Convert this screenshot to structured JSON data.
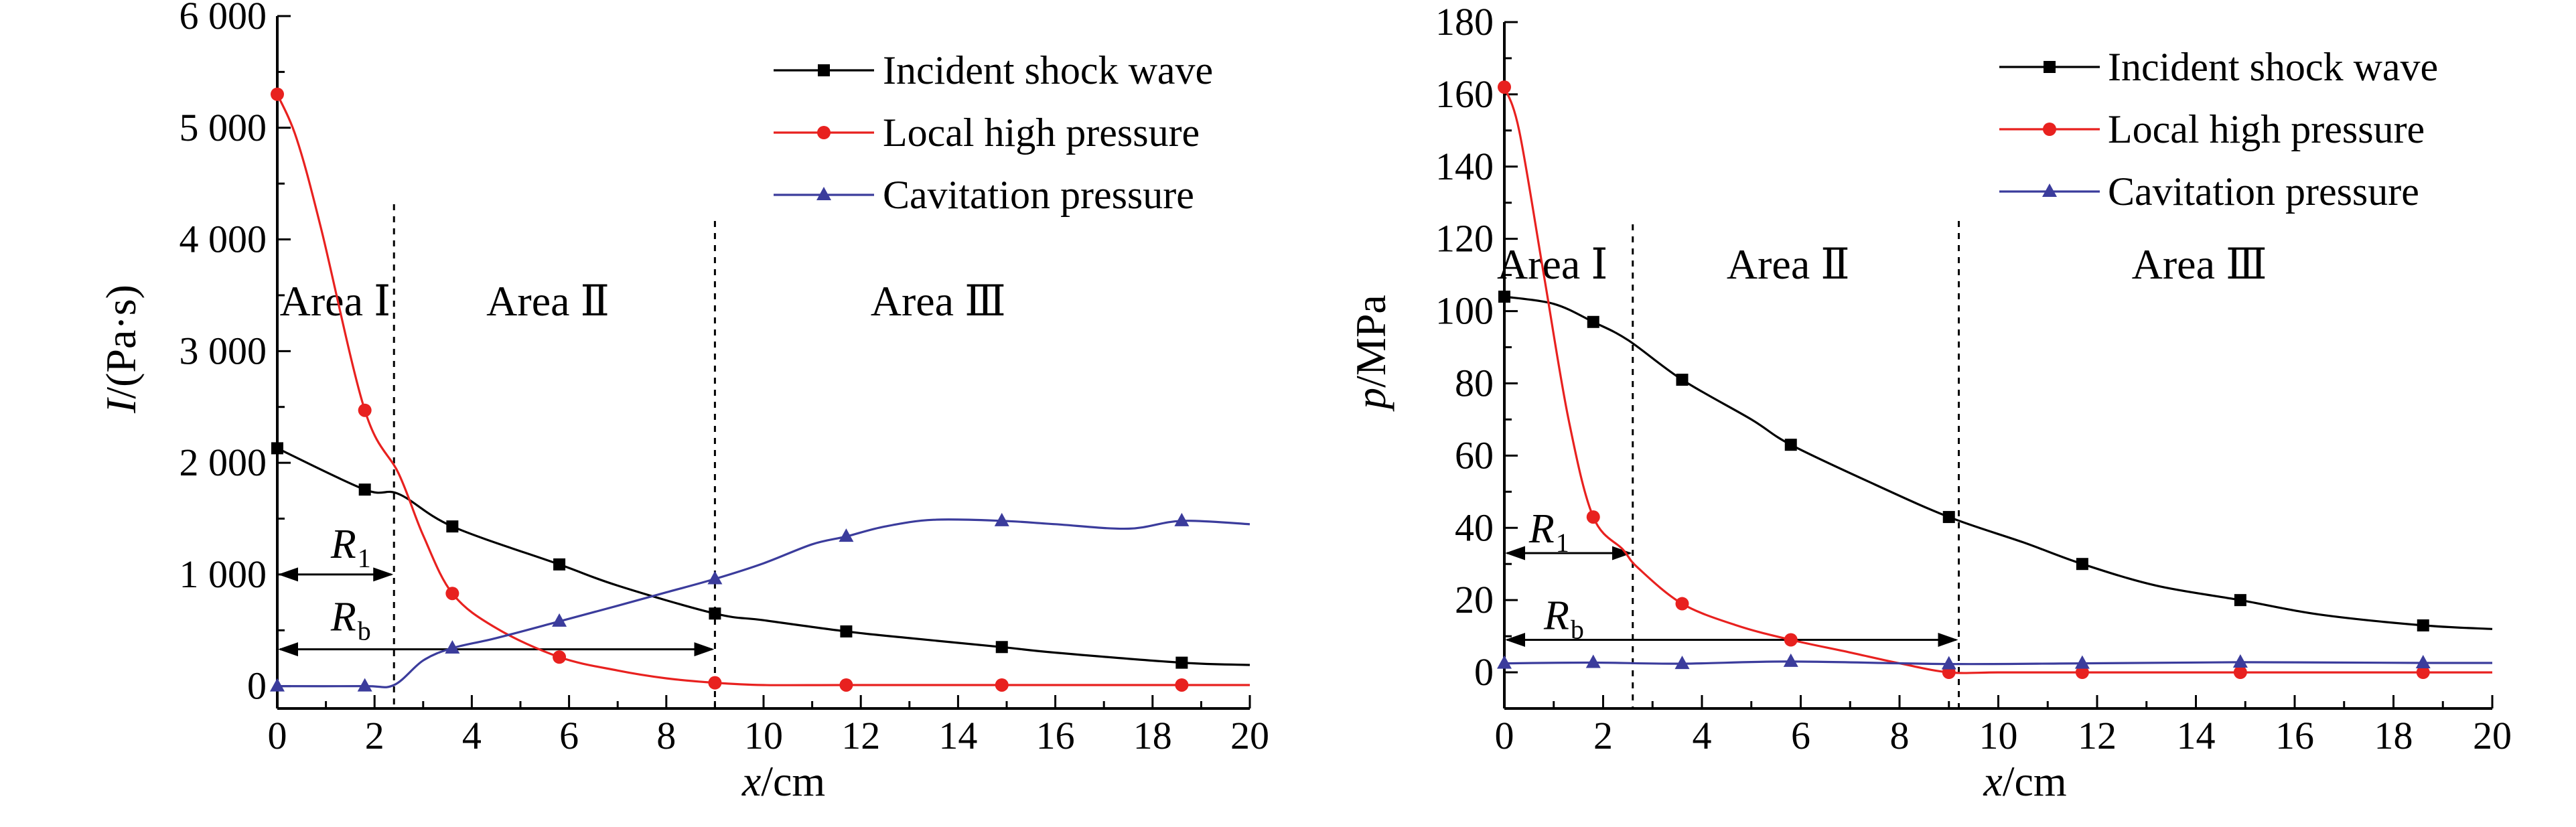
{
  "chart_data": [
    {
      "type": "line",
      "ylabel_var": "I",
      "ylabel_unit": "/(Pa·s)",
      "xlabel_var": "x",
      "xlabel_unit": "/cm",
      "xlim": [
        0,
        20
      ],
      "ylim": [
        -200,
        6000
      ],
      "xticks": [
        0,
        2,
        4,
        6,
        8,
        10,
        12,
        14,
        16,
        18,
        20
      ],
      "xtick_labels": [
        "0",
        "2",
        "4",
        "6",
        "8",
        "10",
        "12",
        "14",
        "16",
        "18",
        "20"
      ],
      "yticks": [
        0,
        1000,
        2000,
        3000,
        4000,
        5000,
        6000
      ],
      "ytick_labels": [
        "0",
        "1 000",
        "2 000",
        "3 000",
        "4 000",
        "5 000",
        "6 000"
      ],
      "series": [
        {
          "name": "Incident shock wave",
          "color": "#000000",
          "marker": "square",
          "curve": [
            [
              0,
              2130
            ],
            [
              1.8,
              1760
            ],
            [
              2.5,
              1720
            ],
            [
              3.6,
              1430
            ],
            [
              5.8,
              1090
            ],
            [
              7,
              900
            ],
            [
              9,
              650
            ],
            [
              10,
              590
            ],
            [
              11.7,
              490
            ],
            [
              13,
              430
            ],
            [
              14.9,
              350
            ],
            [
              16,
              300
            ],
            [
              18.6,
              210
            ],
            [
              20,
              190
            ]
          ],
          "markers": [
            [
              0,
              2130
            ],
            [
              1.8,
              1760
            ],
            [
              3.6,
              1430
            ],
            [
              5.8,
              1090
            ],
            [
              9,
              650
            ],
            [
              11.7,
              490
            ],
            [
              14.9,
              350
            ],
            [
              18.6,
              210
            ]
          ]
        },
        {
          "name": "Local high pressure",
          "color": "#e8211f",
          "marker": "circle",
          "curve": [
            [
              0,
              5300
            ],
            [
              0.4,
              4900
            ],
            [
              0.9,
              4100
            ],
            [
              1.8,
              2470
            ],
            [
              2.5,
              1900
            ],
            [
              3,
              1350
            ],
            [
              3.6,
              830
            ],
            [
              4.5,
              520
            ],
            [
              5.8,
              260
            ],
            [
              7,
              140
            ],
            [
              8,
              70
            ],
            [
              9,
              30
            ],
            [
              10,
              10
            ],
            [
              11.7,
              10
            ],
            [
              14.9,
              10
            ],
            [
              18.6,
              10
            ],
            [
              20,
              10
            ]
          ],
          "markers": [
            [
              0,
              5300
            ],
            [
              1.8,
              2470
            ],
            [
              3.6,
              830
            ],
            [
              5.8,
              260
            ],
            [
              9,
              30
            ],
            [
              11.7,
              10
            ],
            [
              14.9,
              10
            ],
            [
              18.6,
              10
            ]
          ]
        },
        {
          "name": "Cavitation pressure",
          "color": "#3b3c9c",
          "marker": "triangle",
          "curve": [
            [
              0,
              0
            ],
            [
              1.8,
              0
            ],
            [
              2.4,
              10
            ],
            [
              3,
              230
            ],
            [
              3.6,
              340
            ],
            [
              4.5,
              430
            ],
            [
              5.8,
              580
            ],
            [
              7,
              720
            ],
            [
              8,
              840
            ],
            [
              9,
              960
            ],
            [
              10,
              1100
            ],
            [
              11,
              1270
            ],
            [
              11.7,
              1340
            ],
            [
              12.5,
              1430
            ],
            [
              13.5,
              1490
            ],
            [
              14.9,
              1480
            ],
            [
              16,
              1450
            ],
            [
              17.5,
              1410
            ],
            [
              18.6,
              1480
            ],
            [
              20,
              1450
            ]
          ],
          "markers": [
            [
              0,
              0
            ],
            [
              1.8,
              0
            ],
            [
              3.6,
              340
            ],
            [
              5.8,
              580
            ],
            [
              9,
              960
            ],
            [
              11.7,
              1340
            ],
            [
              14.9,
              1480
            ],
            [
              18.6,
              1480
            ]
          ]
        }
      ],
      "vlines": [
        2.4,
        9.0
      ],
      "area_labels": [
        {
          "text": "Area  Ⅰ",
          "x": 0.05,
          "y": 3320
        },
        {
          "text": "Area  Ⅱ",
          "x": 4.3,
          "y": 3320
        },
        {
          "text": "Area Ⅲ",
          "x": 12.2,
          "y": 3320
        }
      ],
      "arrows": [
        {
          "name": "R",
          "sub": "1",
          "x0": 0,
          "x1": 2.4,
          "y": 1000,
          "label_x": 1.1,
          "label_y": 1150
        },
        {
          "name": "R",
          "sub": "b",
          "x0": 0,
          "x1": 9.0,
          "y": 330,
          "label_x": 1.1,
          "label_y": 500
        }
      ]
    },
    {
      "type": "line",
      "ylabel_var": "p",
      "ylabel_unit": "/MPa",
      "xlabel_var": "x",
      "xlabel_unit": "/cm",
      "xlim": [
        0,
        20
      ],
      "ylim": [
        -10,
        180
      ],
      "xticks": [
        0,
        2,
        4,
        6,
        8,
        10,
        12,
        14,
        16,
        18,
        20
      ],
      "xtick_labels": [
        "0",
        "2",
        "4",
        "6",
        "8",
        "10",
        "12",
        "14",
        "16",
        "18",
        "20"
      ],
      "yticks": [
        0,
        20,
        40,
        60,
        80,
        100,
        120,
        140,
        160,
        180
      ],
      "ytick_labels": [
        "0",
        "20",
        "40",
        "60",
        "80",
        "100",
        "120",
        "140",
        "160",
        "180"
      ],
      "series": [
        {
          "name": "Incident shock wave",
          "color": "#000000",
          "marker": "square",
          "curve": [
            [
              0,
              104
            ],
            [
              1,
              102
            ],
            [
              1.8,
              97
            ],
            [
              2.5,
              92
            ],
            [
              3.6,
              81
            ],
            [
              5,
              70
            ],
            [
              5.8,
              63
            ],
            [
              7.5,
              52
            ],
            [
              9,
              43
            ],
            [
              10.5,
              36
            ],
            [
              11.7,
              30
            ],
            [
              13.2,
              24
            ],
            [
              14.9,
              20
            ],
            [
              16.5,
              16
            ],
            [
              18.6,
              13
            ],
            [
              20,
              12
            ]
          ],
          "markers": [
            [
              0,
              104
            ],
            [
              1.8,
              97
            ],
            [
              3.6,
              81
            ],
            [
              5.8,
              63
            ],
            [
              9,
              43
            ],
            [
              11.7,
              30
            ],
            [
              14.9,
              20
            ],
            [
              18.6,
              13
            ]
          ]
        },
        {
          "name": "Local high pressure",
          "color": "#e8211f",
          "marker": "circle",
          "curve": [
            [
              0,
              162
            ],
            [
              0.3,
              150
            ],
            [
              0.8,
              110
            ],
            [
              1.3,
              70
            ],
            [
              1.8,
              43
            ],
            [
              2.4,
              34
            ],
            [
              2.7,
              29
            ],
            [
              3.6,
              19
            ],
            [
              4.7,
              13
            ],
            [
              5.8,
              9
            ],
            [
              7,
              5.5
            ],
            [
              8,
              2.5
            ],
            [
              9,
              0
            ],
            [
              10,
              0
            ],
            [
              11.7,
              0
            ],
            [
              14.9,
              0
            ],
            [
              18.6,
              0
            ],
            [
              20,
              0
            ]
          ],
          "markers": [
            [
              0,
              162
            ],
            [
              1.8,
              43
            ],
            [
              3.6,
              19
            ],
            [
              5.8,
              9
            ],
            [
              9,
              0
            ],
            [
              11.7,
              0
            ],
            [
              14.9,
              0
            ],
            [
              18.6,
              0
            ]
          ]
        },
        {
          "name": "Cavitation pressure",
          "color": "#3b3c9c",
          "marker": "triangle",
          "curve": [
            [
              0,
              2.5
            ],
            [
              1.8,
              2.7
            ],
            [
              3.6,
              2.4
            ],
            [
              5.8,
              3
            ],
            [
              9,
              2.3
            ],
            [
              11.7,
              2.5
            ],
            [
              14.9,
              2.8
            ],
            [
              18.6,
              2.6
            ],
            [
              20,
              2.6
            ]
          ],
          "markers": [
            [
              0,
              2.5
            ],
            [
              1.8,
              2.7
            ],
            [
              3.6,
              2.4
            ],
            [
              5.8,
              3
            ],
            [
              9,
              2.3
            ],
            [
              11.7,
              2.5
            ],
            [
              14.9,
              2.8
            ],
            [
              18.6,
              2.6
            ]
          ]
        }
      ],
      "vlines": [
        2.6,
        9.2
      ],
      "area_labels": [
        {
          "text": "Area  Ⅰ",
          "x": -0.15,
          "y": 109
        },
        {
          "text": "Area  Ⅱ",
          "x": 4.5,
          "y": 109
        },
        {
          "text": "Area Ⅲ",
          "x": 12.7,
          "y": 109
        }
      ],
      "arrows": [
        {
          "name": "R",
          "sub": "1",
          "x0": 0,
          "x1": 2.6,
          "y": 33,
          "label_x": 0.5,
          "label_y": 36
        },
        {
          "name": "R",
          "sub": "b",
          "x0": 0,
          "x1": 9.2,
          "y": 9,
          "label_x": 0.8,
          "label_y": 12
        }
      ]
    }
  ]
}
